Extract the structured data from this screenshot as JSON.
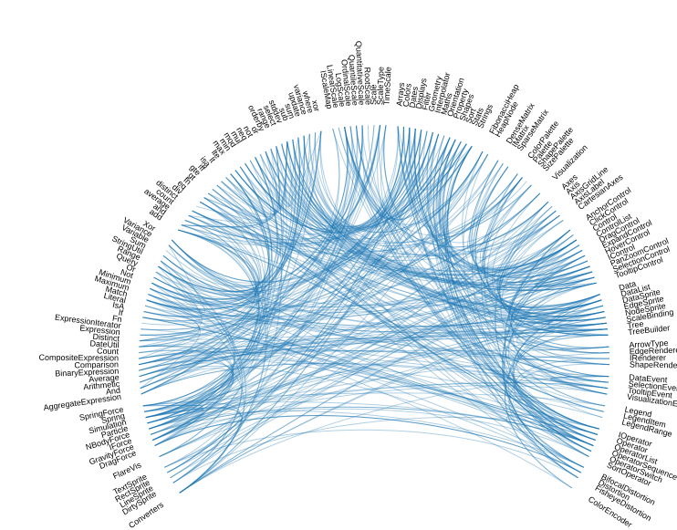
{
  "groups": [
    {
      "nodes": [
        "Arrays",
        "Colors",
        "Dates",
        "Displays",
        "Filter",
        "Geometry",
        "Interpolator",
        "Maths",
        "Orientation",
        "Property",
        "Shapes",
        "Sort",
        "Stats",
        "Strings"
      ]
    },
    {
      "nodes": [
        "FibonacciHeap",
        "HeapNode"
      ]
    },
    {
      "nodes": [
        "DenseMatrix",
        "IMatrix",
        "SparseMatrix"
      ]
    },
    {
      "nodes": [
        "ColorPalette",
        "Palette",
        "ShapePalette",
        "SizePalette"
      ]
    },
    {
      "nodes": [
        "Visualization"
      ]
    },
    {
      "nodes": [
        "Axes",
        "Axis",
        "AxisGridLine",
        "AxisLabel",
        "CartesianAxes"
      ]
    },
    {
      "nodes": [
        "AnchorControl",
        "ClickControl",
        "Control",
        "ControlList",
        "DragControl",
        "ExpandControl",
        "HoverControl",
        "IControl",
        "PanZoomControl",
        "SelectionControl",
        "TooltipControl"
      ]
    },
    {
      "nodes": [
        "Data",
        "DataList",
        "DataSprite",
        "EdgeSprite",
        "NodeSprite",
        "ScaleBinding",
        "Tree",
        "TreeBuilder"
      ]
    },
    {
      "nodes": [
        "ArrowType",
        "EdgeRenderer",
        "IRenderer",
        "ShapeRenderer"
      ]
    },
    {
      "nodes": [
        "DataEvent",
        "SelectionEvent",
        "TooltipEvent",
        "VisualizationEvent"
      ]
    },
    {
      "nodes": [
        "Legend",
        "LegendItem",
        "LegendRange"
      ]
    },
    {
      "nodes": [
        "IOperator",
        "Operator",
        "OperatorList",
        "OperatorSequence",
        "OperatorSwitch",
        "SortOperator"
      ]
    },
    {
      "nodes": [
        "BifocalDistortion",
        "Distortion",
        "FisheyeDistortion"
      ]
    },
    {
      "nodes": [
        "ColorEncoder"
      ]
    },
    {
      "nodes": [
        "Converters"
      ]
    },
    {
      "nodes": [
        "DirtySprite",
        "LineSprite",
        "RectSprite",
        "TextSprite"
      ]
    },
    {
      "nodes": [
        "FlareVis"
      ]
    },
    {
      "nodes": [
        "DragForce",
        "GravityForce",
        "IForce",
        "NBodyForce",
        "Particle",
        "Simulation",
        "Spring",
        "SpringForce"
      ]
    },
    {
      "nodes": [
        "AggregateExpression",
        "And",
        "Arithmetic",
        "Average",
        "BinaryExpression",
        "Comparison",
        "CompositeExpression",
        "Count",
        "DateUtil",
        "Distinct",
        "Expression",
        "ExpressionIterator",
        "Fn",
        "If",
        "IsA",
        "Literal",
        "Match",
        "Maximum",
        "Minimum",
        "Not",
        "Or",
        "Query",
        "Range",
        "StringUtil",
        "Sum",
        "Variable",
        "Variance",
        "Xor"
      ]
    },
    {
      "nodes": [
        "add",
        "and",
        "average",
        "count",
        "distinct",
        "div",
        "eq",
        "fn",
        "gt",
        "gte",
        "iff",
        "isa",
        "lt",
        "lte",
        "max",
        "min",
        "mod",
        "mul",
        "neq",
        "not",
        "or",
        "orderby",
        "range",
        "select",
        "stddev",
        "sub",
        "sum",
        "update",
        "variance",
        "where",
        "xor"
      ]
    },
    {
      "nodes": [
        "IScaleMap",
        "LinearScale",
        "LogScale",
        "OrdinalScale",
        "QuantileScale",
        "QuantitativeScale",
        "RootScale",
        "Scale",
        "ScaleType",
        "TimeScale"
      ]
    }
  ]
}
